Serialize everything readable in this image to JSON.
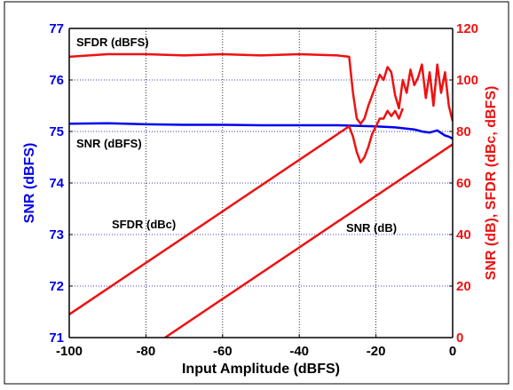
{
  "chart_data": {
    "type": "line",
    "xlabel": "Input Amplitude (dBFS)",
    "ylabel_left": "SNR (dBFS)",
    "ylabel_right": "SNR (dB), SFDR (dBc, dBFS)",
    "xlim": [
      -100,
      0
    ],
    "ylim_left": [
      71,
      77
    ],
    "ylim_right": [
      0,
      120
    ],
    "x_ticks": [
      "-100",
      "-80",
      "-60",
      "-40",
      "-20",
      "0"
    ],
    "y_left_ticks": [
      "71",
      "72",
      "73",
      "74",
      "75",
      "76",
      "77"
    ],
    "y_right_ticks": [
      "0",
      "20",
      "40",
      "60",
      "80",
      "100",
      "120"
    ],
    "grid": true,
    "colors": {
      "snr_dbfs": "#0000ee",
      "red_series": "#ee1111",
      "grid": "#0000cc"
    },
    "annotations": [
      "SFDR (dBFS)",
      "SNR (dBFS)",
      "SFDR (dBc)",
      "SNR (dB)"
    ],
    "series": [
      {
        "name": "SFDR (dBFS)",
        "axis": "right",
        "x": [
          -100,
          -90,
          -80,
          -70,
          -60,
          -50,
          -40,
          -30,
          -27,
          -26,
          -25,
          -24,
          -23,
          -22,
          -21,
          -20,
          -19,
          -18,
          -17,
          -16,
          -15,
          -14,
          -13,
          -12,
          -11,
          -10,
          -9,
          -8,
          -7,
          -6,
          -5,
          -4,
          -3,
          -2,
          -1,
          0
        ],
        "values": [
          109,
          110,
          110,
          109.5,
          110,
          109.5,
          110,
          109.5,
          109,
          95,
          85,
          83,
          85,
          90,
          94,
          98,
          102,
          100,
          105,
          103,
          94,
          89,
          100,
          95,
          104,
          98,
          101,
          106,
          93,
          103,
          90,
          106,
          95,
          103,
          90,
          84
        ]
      },
      {
        "name": "SNR (dBFS)",
        "axis": "left",
        "x": [
          -100,
          -90,
          -80,
          -70,
          -60,
          -50,
          -40,
          -30,
          -25,
          -20,
          -15,
          -10,
          -8,
          -6,
          -4,
          -2,
          -1,
          0
        ],
        "values": [
          75.15,
          75.16,
          75.14,
          75.13,
          75.13,
          75.12,
          75.12,
          75.12,
          75.11,
          75.1,
          75.08,
          75.04,
          75.0,
          74.98,
          75.02,
          74.92,
          74.9,
          74.86
        ]
      },
      {
        "name": "SFDR (dBc)",
        "axis": "right",
        "x": [
          -100,
          -27,
          -26,
          -25,
          -24,
          -23,
          -22,
          -21,
          -20,
          -19,
          -18,
          -17,
          -16,
          -15,
          -14,
          -13
        ],
        "values": [
          9,
          82,
          78,
          72,
          68,
          70,
          74,
          79,
          82,
          85,
          85,
          88,
          86,
          88,
          85,
          89
        ]
      },
      {
        "name": "SNR (dB)",
        "axis": "right",
        "x": [
          -75,
          0
        ],
        "values": [
          0,
          75
        ]
      }
    ]
  }
}
